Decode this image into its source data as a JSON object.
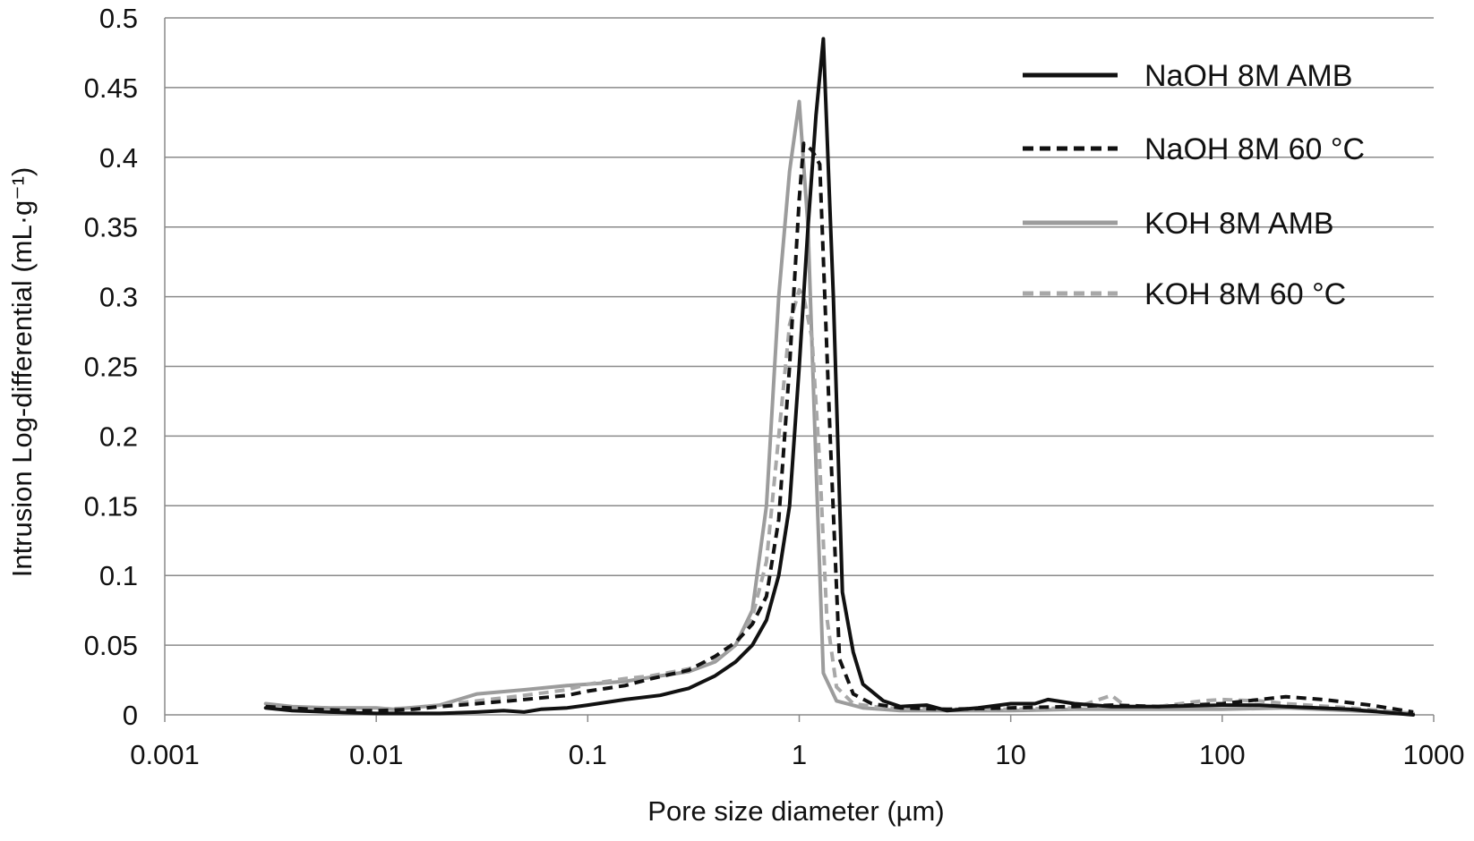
{
  "chart_data": {
    "type": "line",
    "x_scale": "log",
    "xlabel": "Pore size diameter (µm)",
    "ylabel": "Intrusion Log-differential (mL·g⁻¹)",
    "xlim": [
      0.001,
      1000
    ],
    "ylim": [
      0,
      0.5
    ],
    "x_ticks": [
      0.001,
      0.01,
      0.1,
      1,
      10,
      100,
      1000
    ],
    "x_tick_labels": [
      "0.001",
      "0.01",
      "0.1",
      "1",
      "10",
      "100",
      "1000"
    ],
    "y_ticks": [
      0,
      0.05,
      0.1,
      0.15,
      0.2,
      0.25,
      0.3,
      0.35,
      0.4,
      0.45,
      0.5
    ],
    "y_tick_labels": [
      "0",
      "0.05",
      "0.1",
      "0.15",
      "0.2",
      "0.25",
      "0.3",
      "0.35",
      "0.4",
      "0.45",
      "0.5"
    ],
    "grid": "horizontal",
    "legend_position": "top-right",
    "series": [
      {
        "name": "NaOH 8M AMB",
        "color": "#111111",
        "dash": "solid",
        "points": [
          [
            0.003,
            0.005
          ],
          [
            0.004,
            0.003
          ],
          [
            0.006,
            0.002
          ],
          [
            0.01,
            0.001
          ],
          [
            0.02,
            0.001
          ],
          [
            0.03,
            0.002
          ],
          [
            0.04,
            0.003
          ],
          [
            0.05,
            0.002
          ],
          [
            0.06,
            0.004
          ],
          [
            0.08,
            0.005
          ],
          [
            0.1,
            0.007
          ],
          [
            0.15,
            0.011
          ],
          [
            0.22,
            0.014
          ],
          [
            0.3,
            0.019
          ],
          [
            0.4,
            0.028
          ],
          [
            0.5,
            0.038
          ],
          [
            0.6,
            0.05
          ],
          [
            0.7,
            0.068
          ],
          [
            0.8,
            0.1
          ],
          [
            0.9,
            0.15
          ],
          [
            1.0,
            0.25
          ],
          [
            1.1,
            0.35
          ],
          [
            1.2,
            0.43
          ],
          [
            1.3,
            0.485
          ],
          [
            1.45,
            0.3
          ],
          [
            1.6,
            0.088
          ],
          [
            1.8,
            0.045
          ],
          [
            2.0,
            0.022
          ],
          [
            2.5,
            0.01
          ],
          [
            3.0,
            0.006
          ],
          [
            4.0,
            0.007
          ],
          [
            5.0,
            0.003
          ],
          [
            7.0,
            0.005
          ],
          [
            10.0,
            0.008
          ],
          [
            13.0,
            0.008
          ],
          [
            15.0,
            0.011
          ],
          [
            20.0,
            0.008
          ],
          [
            30.0,
            0.006
          ],
          [
            50.0,
            0.006
          ],
          [
            100.0,
            0.007
          ],
          [
            150.0,
            0.007
          ],
          [
            200.0,
            0.006
          ],
          [
            400.0,
            0.004
          ],
          [
            800.0,
            0.0
          ]
        ]
      },
      {
        "name": "NaOH 8M 60 °C",
        "color": "#111111",
        "dash": "dashed",
        "points": [
          [
            0.003,
            0.006
          ],
          [
            0.005,
            0.004
          ],
          [
            0.008,
            0.003
          ],
          [
            0.01,
            0.003
          ],
          [
            0.015,
            0.004
          ],
          [
            0.02,
            0.006
          ],
          [
            0.03,
            0.008
          ],
          [
            0.05,
            0.011
          ],
          [
            0.08,
            0.014
          ],
          [
            0.1,
            0.017
          ],
          [
            0.15,
            0.021
          ],
          [
            0.2,
            0.026
          ],
          [
            0.3,
            0.032
          ],
          [
            0.4,
            0.042
          ],
          [
            0.5,
            0.052
          ],
          [
            0.6,
            0.065
          ],
          [
            0.7,
            0.085
          ],
          [
            0.8,
            0.14
          ],
          [
            0.9,
            0.25
          ],
          [
            1.0,
            0.37
          ],
          [
            1.05,
            0.41
          ],
          [
            1.15,
            0.405
          ],
          [
            1.25,
            0.395
          ],
          [
            1.4,
            0.2
          ],
          [
            1.55,
            0.04
          ],
          [
            1.8,
            0.015
          ],
          [
            2.2,
            0.008
          ],
          [
            3.0,
            0.005
          ],
          [
            5.0,
            0.004
          ],
          [
            10.0,
            0.005
          ],
          [
            20.0,
            0.006
          ],
          [
            30.0,
            0.007
          ],
          [
            50.0,
            0.006
          ],
          [
            100.0,
            0.008
          ],
          [
            150.0,
            0.011
          ],
          [
            200.0,
            0.013
          ],
          [
            300.0,
            0.011
          ],
          [
            500.0,
            0.007
          ],
          [
            800.0,
            0.002
          ]
        ]
      },
      {
        "name": "KOH 8M AMB",
        "color": "#9c9c9c",
        "dash": "solid",
        "points": [
          [
            0.003,
            0.008
          ],
          [
            0.004,
            0.006
          ],
          [
            0.006,
            0.005
          ],
          [
            0.01,
            0.005
          ],
          [
            0.012,
            0.004
          ],
          [
            0.02,
            0.007
          ],
          [
            0.03,
            0.015
          ],
          [
            0.05,
            0.018
          ],
          [
            0.08,
            0.021
          ],
          [
            0.1,
            0.022
          ],
          [
            0.15,
            0.024
          ],
          [
            0.2,
            0.027
          ],
          [
            0.3,
            0.031
          ],
          [
            0.4,
            0.038
          ],
          [
            0.5,
            0.05
          ],
          [
            0.6,
            0.075
          ],
          [
            0.7,
            0.15
          ],
          [
            0.8,
            0.3
          ],
          [
            0.9,
            0.39
          ],
          [
            1.0,
            0.44
          ],
          [
            1.1,
            0.35
          ],
          [
            1.2,
            0.18
          ],
          [
            1.3,
            0.03
          ],
          [
            1.5,
            0.01
          ],
          [
            2.0,
            0.005
          ],
          [
            3.0,
            0.003
          ],
          [
            5.0,
            0.003
          ],
          [
            10.0,
            0.003
          ],
          [
            20.0,
            0.004
          ],
          [
            50.0,
            0.004
          ],
          [
            100.0,
            0.004
          ],
          [
            200.0,
            0.005
          ],
          [
            400.0,
            0.003
          ],
          [
            800.0,
            0.001
          ]
        ]
      },
      {
        "name": "KOH 8M 60 °C",
        "color": "#a8a8a8",
        "dash": "dashed",
        "points": [
          [
            0.003,
            0.006
          ],
          [
            0.005,
            0.005
          ],
          [
            0.008,
            0.004
          ],
          [
            0.01,
            0.004
          ],
          [
            0.015,
            0.005
          ],
          [
            0.02,
            0.007
          ],
          [
            0.03,
            0.01
          ],
          [
            0.05,
            0.014
          ],
          [
            0.08,
            0.018
          ],
          [
            0.1,
            0.022
          ],
          [
            0.15,
            0.026
          ],
          [
            0.2,
            0.028
          ],
          [
            0.3,
            0.033
          ],
          [
            0.4,
            0.04
          ],
          [
            0.5,
            0.05
          ],
          [
            0.6,
            0.07
          ],
          [
            0.7,
            0.11
          ],
          [
            0.8,
            0.2
          ],
          [
            0.9,
            0.28
          ],
          [
            1.0,
            0.305
          ],
          [
            1.05,
            0.3
          ],
          [
            1.15,
            0.27
          ],
          [
            1.25,
            0.18
          ],
          [
            1.35,
            0.07
          ],
          [
            1.5,
            0.02
          ],
          [
            1.8,
            0.008
          ],
          [
            2.5,
            0.005
          ],
          [
            5.0,
            0.004
          ],
          [
            10.0,
            0.004
          ],
          [
            20.0,
            0.005
          ],
          [
            30.0,
            0.014
          ],
          [
            35.0,
            0.006
          ],
          [
            50.0,
            0.006
          ],
          [
            80.0,
            0.01
          ],
          [
            100.0,
            0.011
          ],
          [
            150.0,
            0.01
          ],
          [
            200.0,
            0.008
          ],
          [
            400.0,
            0.005
          ],
          [
            800.0,
            0.001
          ]
        ]
      }
    ]
  }
}
